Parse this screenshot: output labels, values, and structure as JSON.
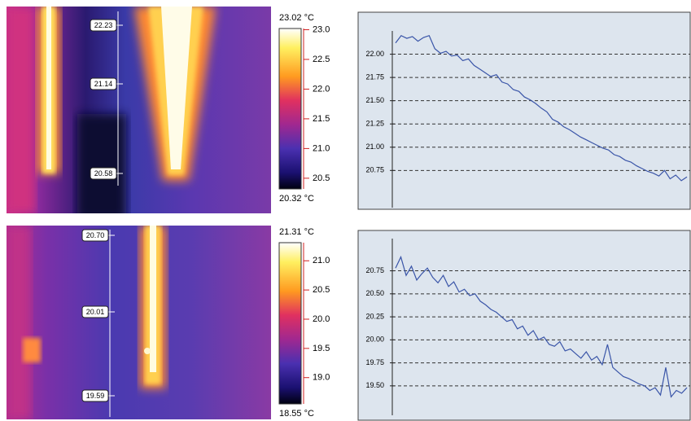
{
  "thermal_images": [
    {
      "scale_max": {
        "value": 23.02,
        "label": "23.02 °C"
      },
      "scale_min": {
        "value": 20.32,
        "label": "20.32 °C"
      },
      "scale_ticks": [
        {
          "value": 23,
          "label": "23.0"
        },
        {
          "value": 22.5,
          "label": "22.5"
        },
        {
          "value": 22,
          "label": "22.0"
        },
        {
          "value": 21.5,
          "label": "21.5"
        },
        {
          "value": 21,
          "label": "21.0"
        },
        {
          "value": 20.5,
          "label": "20.5"
        }
      ],
      "marker_labels": [
        22.23,
        21.14,
        20.58
      ]
    },
    {
      "scale_max": {
        "value": 21.31,
        "label": "21.31 °C"
      },
      "scale_min": {
        "value": 18.55,
        "label": "18.55 °C"
      },
      "scale_ticks": [
        {
          "value": 21,
          "label": "21.0"
        },
        {
          "value": 20.5,
          "label": "20.5"
        },
        {
          "value": 20,
          "label": "20.0"
        },
        {
          "value": 19.5,
          "label": "19.5"
        },
        {
          "value": 19,
          "label": "19.0"
        }
      ],
      "marker_labels": [
        {
          "value": 20.7,
          "label": "20.70"
        },
        20.01,
        19.59
      ]
    }
  ],
  "chart_data": [
    {
      "type": "line",
      "color": "#3a55a8",
      "grid": true,
      "ylim": [
        20.35,
        22.25
      ],
      "yticks": [
        {
          "value": 22,
          "label": "22.00"
        },
        {
          "value": 21.75,
          "label": "21.75"
        },
        {
          "value": 21.5,
          "label": "21.50"
        },
        {
          "value": 21.25,
          "label": "21.25"
        },
        {
          "value": 21,
          "label": "21.00"
        },
        {
          "value": 20.75,
          "label": "20.75"
        }
      ],
      "values": [
        22.12,
        22.2,
        22.17,
        22.19,
        22.14,
        22.18,
        22.2,
        22.06,
        22.01,
        22.03,
        21.98,
        21.99,
        21.93,
        21.95,
        21.88,
        21.84,
        21.8,
        21.76,
        21.78,
        21.7,
        21.68,
        21.62,
        21.6,
        21.54,
        21.51,
        21.47,
        21.42,
        21.38,
        21.3,
        21.27,
        21.22,
        21.19,
        21.15,
        21.11,
        21.08,
        21.05,
        21.02,
        20.99,
        20.97,
        20.92,
        20.9,
        20.86,
        20.84,
        20.8,
        20.77,
        20.74,
        20.72,
        20.69,
        20.75,
        20.66,
        20.7,
        20.64,
        20.68
      ]
    },
    {
      "type": "line",
      "color": "#3a55a8",
      "grid": true,
      "ylim": [
        19.18,
        21.1
      ],
      "yticks": [
        {
          "value": 20.75,
          "label": "20.75"
        },
        {
          "value": 20.5,
          "label": "20.50"
        },
        {
          "value": 20.25,
          "label": "20.25"
        },
        {
          "value": 20,
          "label": "20.00"
        },
        {
          "value": 19.75,
          "label": "19.75"
        },
        {
          "value": 19.5,
          "label": "19.50"
        }
      ],
      "values": [
        20.78,
        20.9,
        20.7,
        20.8,
        20.65,
        20.72,
        20.78,
        20.68,
        20.62,
        20.7,
        20.58,
        20.63,
        20.52,
        20.55,
        20.48,
        20.5,
        20.42,
        20.38,
        20.33,
        20.3,
        20.25,
        20.2,
        20.22,
        20.12,
        20.15,
        20.05,
        20.1,
        20.0,
        20.03,
        19.95,
        19.93,
        19.98,
        19.88,
        19.9,
        19.85,
        19.8,
        19.87,
        19.78,
        19.82,
        19.73,
        19.95,
        19.7,
        19.65,
        19.6,
        19.58,
        19.55,
        19.52,
        19.5,
        19.45,
        19.48,
        19.4,
        19.7,
        19.38,
        19.45,
        19.42,
        19.48
      ]
    }
  ]
}
